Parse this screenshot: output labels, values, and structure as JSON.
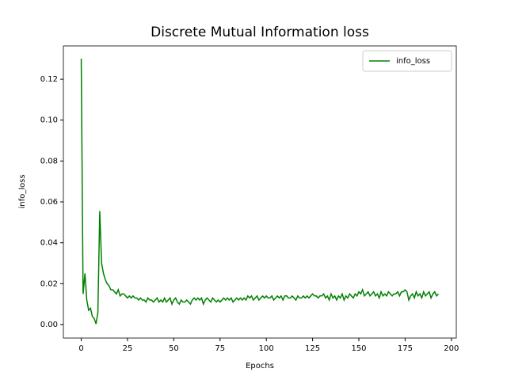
{
  "chart_data": {
    "type": "line",
    "title": "Discrete Mutual Information loss",
    "xlabel": "Epochs",
    "ylabel": "info_loss",
    "series": [
      {
        "name": "info_loss",
        "color": "#008000",
        "values": [
          0.13,
          0.015,
          0.025,
          0.012,
          0.007,
          0.008,
          0.004,
          0.003,
          0.0003,
          0.006,
          0.0555,
          0.03,
          0.025,
          0.022,
          0.02,
          0.019,
          0.017,
          0.017,
          0.016,
          0.015,
          0.017,
          0.014,
          0.015,
          0.015,
          0.014,
          0.013,
          0.014,
          0.013,
          0.014,
          0.013,
          0.013,
          0.012,
          0.013,
          0.012,
          0.012,
          0.011,
          0.013,
          0.012,
          0.012,
          0.011,
          0.012,
          0.013,
          0.011,
          0.012,
          0.011,
          0.013,
          0.011,
          0.012,
          0.013,
          0.01,
          0.012,
          0.013,
          0.011,
          0.01,
          0.012,
          0.011,
          0.011,
          0.012,
          0.011,
          0.01,
          0.012,
          0.013,
          0.012,
          0.013,
          0.012,
          0.013,
          0.01,
          0.012,
          0.013,
          0.012,
          0.011,
          0.013,
          0.012,
          0.011,
          0.012,
          0.011,
          0.012,
          0.013,
          0.012,
          0.013,
          0.012,
          0.013,
          0.011,
          0.012,
          0.013,
          0.012,
          0.013,
          0.012,
          0.013,
          0.012,
          0.014,
          0.013,
          0.014,
          0.012,
          0.013,
          0.014,
          0.012,
          0.013,
          0.014,
          0.013,
          0.014,
          0.013,
          0.013,
          0.014,
          0.012,
          0.013,
          0.014,
          0.013,
          0.014,
          0.012,
          0.014,
          0.014,
          0.013,
          0.013,
          0.014,
          0.013,
          0.012,
          0.014,
          0.013,
          0.013,
          0.014,
          0.013,
          0.014,
          0.013,
          0.014,
          0.015,
          0.014,
          0.014,
          0.013,
          0.014,
          0.014,
          0.015,
          0.013,
          0.014,
          0.012,
          0.015,
          0.013,
          0.014,
          0.012,
          0.014,
          0.013,
          0.015,
          0.012,
          0.014,
          0.013,
          0.015,
          0.014,
          0.013,
          0.015,
          0.014,
          0.016,
          0.015,
          0.017,
          0.014,
          0.015,
          0.016,
          0.014,
          0.015,
          0.016,
          0.014,
          0.015,
          0.013,
          0.016,
          0.014,
          0.015,
          0.014,
          0.016,
          0.015,
          0.014,
          0.015,
          0.015,
          0.016,
          0.014,
          0.016,
          0.016,
          0.017,
          0.016,
          0.012,
          0.014,
          0.015,
          0.013,
          0.016,
          0.014,
          0.015,
          0.013,
          0.016,
          0.014,
          0.015,
          0.016,
          0.013,
          0.015,
          0.016,
          0.014,
          0.015
        ]
      }
    ],
    "xlim": [
      -9.65,
      202.65
    ],
    "ylim": [
      -0.0066,
      0.1363
    ],
    "xticks": [
      0,
      25,
      50,
      75,
      100,
      125,
      150,
      175,
      200
    ],
    "yticks": [
      {
        "value": 0,
        "label": "0.00"
      },
      {
        "value": 0.02,
        "label": "0.02"
      },
      {
        "value": 0.04,
        "label": "0.04"
      },
      {
        "value": 0.06,
        "label": "0.06"
      },
      {
        "value": 0.08,
        "label": "0.08"
      },
      {
        "value": 0.1,
        "label": "0.10"
      },
      {
        "value": 0.12,
        "label": "0.12"
      }
    ],
    "legend": "upper right",
    "grid": false
  }
}
